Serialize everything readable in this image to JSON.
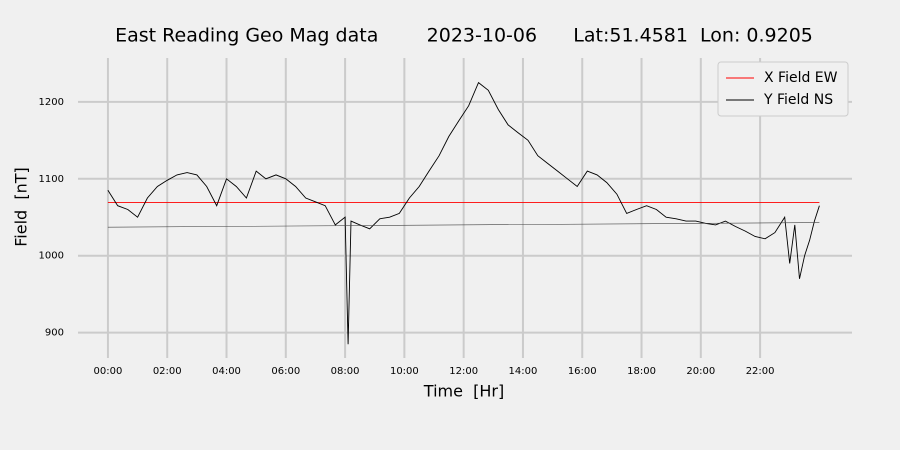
{
  "chart_data": {
    "type": "line",
    "title": "East Reading Geo Mag data        2023-10-06      Lat:51.4581  Lon: 0.9205",
    "x_label": "Time  [Hr]",
    "y_label": "Field  [nT]",
    "xlim": [
      -1.01,
      25.1
    ],
    "ylim": [
      867,
      1257
    ],
    "xticks": [
      {
        "value": 0,
        "label": "00:00"
      },
      {
        "value": 2,
        "label": "02:00"
      },
      {
        "value": 4,
        "label": "04:00"
      },
      {
        "value": 6,
        "label": "06:00"
      },
      {
        "value": 8,
        "label": "08:00"
      },
      {
        "value": 10,
        "label": "10:00"
      },
      {
        "value": 12,
        "label": "12:00"
      },
      {
        "value": 14,
        "label": "14:00"
      },
      {
        "value": 16,
        "label": "16:00"
      },
      {
        "value": 18,
        "label": "18:00"
      },
      {
        "value": 20,
        "label": "20:00"
      },
      {
        "value": 22,
        "label": "22:00"
      }
    ],
    "yticks": [
      900,
      1000,
      1100,
      1200
    ],
    "grid": true,
    "legend": "upper right",
    "series": [
      {
        "name": "X Field EW",
        "color": "#ff0000",
        "x": [
          0,
          24
        ],
        "values": [
          1069,
          1069
        ]
      },
      {
        "name": "Y Field NS",
        "color": "#000000",
        "x": [
          0,
          0.33,
          0.67,
          1.0,
          1.33,
          1.67,
          2.0,
          2.33,
          2.67,
          3.0,
          3.33,
          3.67,
          4.0,
          4.33,
          4.67,
          5.0,
          5.33,
          5.67,
          6.0,
          6.33,
          6.67,
          7.0,
          7.33,
          7.67,
          8.0,
          8.1,
          8.2,
          8.5,
          8.83,
          9.17,
          9.5,
          9.83,
          10.17,
          10.5,
          10.83,
          11.17,
          11.5,
          11.83,
          12.17,
          12.5,
          12.83,
          13.17,
          13.5,
          13.83,
          14.17,
          14.5,
          14.83,
          15.17,
          15.5,
          15.83,
          16.17,
          16.5,
          16.83,
          17.17,
          17.5,
          17.83,
          18.17,
          18.5,
          18.83,
          19.17,
          19.5,
          19.83,
          20.17,
          20.5,
          20.83,
          21.17,
          21.5,
          21.83,
          22.17,
          22.5,
          22.83,
          23.0,
          23.17,
          23.33,
          23.5,
          23.67,
          23.83,
          24.0
        ],
        "values": [
          1085,
          1065,
          1060,
          1050,
          1075,
          1090,
          1098,
          1105,
          1108,
          1105,
          1090,
          1065,
          1100,
          1090,
          1075,
          1110,
          1100,
          1105,
          1100,
          1090,
          1075,
          1070,
          1065,
          1040,
          1050,
          885,
          1045,
          1040,
          1035,
          1048,
          1050,
          1055,
          1075,
          1090,
          1110,
          1130,
          1155,
          1175,
          1195,
          1225,
          1215,
          1190,
          1170,
          1160,
          1150,
          1130,
          1120,
          1110,
          1100,
          1090,
          1110,
          1105,
          1095,
          1080,
          1055,
          1060,
          1065,
          1060,
          1050,
          1048,
          1045,
          1045,
          1042,
          1040,
          1045,
          1038,
          1032,
          1025,
          1022,
          1030,
          1050,
          990,
          1040,
          970,
          1000,
          1020,
          1045,
          1065
        ]
      },
      {
        "color": "#444444",
        "x": [
          0,
          24
        ],
        "values": [
          1037,
          1043
        ]
      }
    ]
  }
}
